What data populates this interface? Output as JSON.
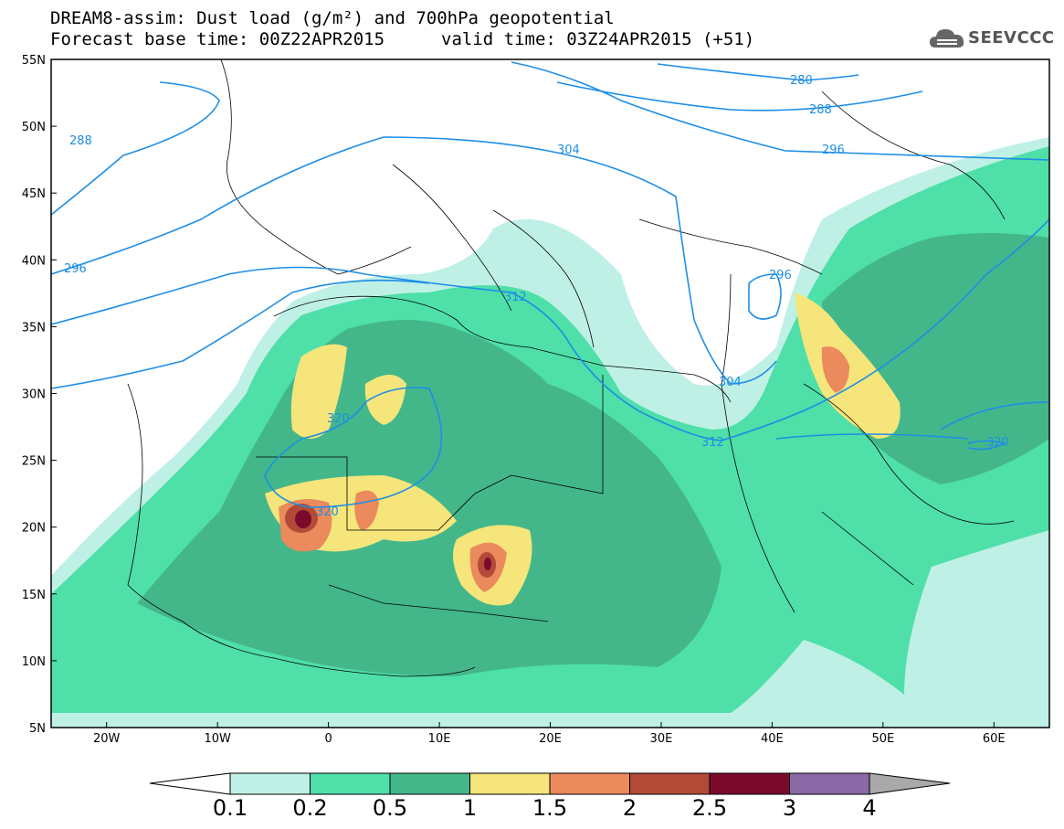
{
  "header": {
    "title_line1": "DREAM8-assim: Dust load (g/m²) and 700hPa geopotential",
    "title_line2": "Forecast base time: 00Z22APR2015",
    "valid_time": "valid time: 03Z24APR2015 (+51)"
  },
  "logo": {
    "text": "SEEVCCC",
    "icon": "cloud-icon"
  },
  "axes": {
    "lat_labels": [
      "55N",
      "50N",
      "45N",
      "40N",
      "35N",
      "30N",
      "25N",
      "20N",
      "15N",
      "10N",
      "5N"
    ],
    "lon_labels": [
      "20W",
      "10W",
      "0",
      "10E",
      "20E",
      "30E",
      "40E",
      "50E",
      "60E"
    ],
    "lon_range": [
      -25,
      65
    ],
    "lat_range": [
      5,
      55
    ]
  },
  "contours": {
    "variable": "700hPa geopotential",
    "labels": [
      "288",
      "296",
      "312",
      "304",
      "280",
      "288",
      "296",
      "320",
      "320",
      "296",
      "304",
      "312",
      "320"
    ]
  },
  "colorbar": {
    "levels": [
      "0.1",
      "0.2",
      "0.5",
      "1",
      "1.5",
      "2",
      "2.5",
      "3",
      "4"
    ],
    "colors": [
      "#bff0e6",
      "#4fdfa8",
      "#43b78a",
      "#f5e57a",
      "#ea8a5d",
      "#b34a38",
      "#7a0b2c",
      "#8a6aa6",
      "#a9a9a9"
    ]
  },
  "chart_data": {
    "type": "heatmap",
    "title": "DREAM8-assim: Dust load (g/m²) and 700hPa geopotential",
    "xlabel": "",
    "ylabel": "",
    "xlim": [
      -25,
      65
    ],
    "ylim": [
      5,
      55
    ],
    "color_levels": [
      0.1,
      0.2,
      0.5,
      1,
      1.5,
      2,
      2.5,
      3,
      4
    ],
    "contour_levels": [
      280,
      288,
      296,
      304,
      312,
      320
    ]
  }
}
